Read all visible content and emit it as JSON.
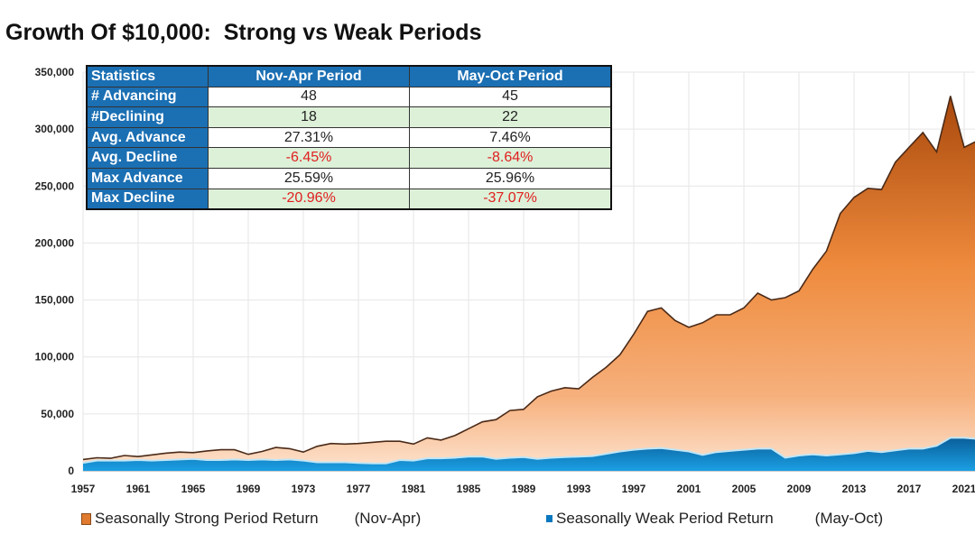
{
  "title": "Growth Of $10,000:  Strong vs Weak Periods",
  "stats_table": {
    "headers": [
      "Statistics",
      "Nov-Apr Period",
      "May-Oct Period"
    ],
    "rows": [
      {
        "label": "# Advancing",
        "nov_apr": "48",
        "may_oct": "45"
      },
      {
        "label": "#Declining",
        "nov_apr": "18",
        "may_oct": "22"
      },
      {
        "label": "Avg. Advance",
        "nov_apr": "27.31%",
        "may_oct": "7.46%"
      },
      {
        "label": "Avg. Decline",
        "nov_apr": "-6.45%",
        "may_oct": "-8.64%"
      },
      {
        "label": "Max Advance",
        "nov_apr": "25.59%",
        "may_oct": "25.96%"
      },
      {
        "label": "Max Decline",
        "nov_apr": "-20.96%",
        "may_oct": "-37.07%"
      }
    ],
    "colors": {
      "header": "#1b6fb3",
      "alt_row": "#ddf0d8",
      "negative": "#e02020"
    }
  },
  "legend": [
    {
      "label": "Seasonally Strong Period Return",
      "period": "(Nov-Apr)",
      "color": "#e07a2e"
    },
    {
      "label": "Seasonally Weak Period Return",
      "period": "(May-Oct)",
      "color": "#0a78c0"
    }
  ],
  "chart_data": {
    "type": "area",
    "title": "Growth Of $10,000:  Strong vs Weak Periods",
    "xlabel": "",
    "ylabel": "",
    "ylim": [
      0,
      350000
    ],
    "xlim": [
      1957,
      2022
    ],
    "y_ticks": [
      "0",
      "50,000",
      "100,000",
      "150,000",
      "200,000",
      "250,000",
      "300,000",
      "350,000"
    ],
    "x_ticks": [
      "1957",
      "1961",
      "1965",
      "1969",
      "1973",
      "1977",
      "1981",
      "1985",
      "1989",
      "1993",
      "1997",
      "2001",
      "2005",
      "2009",
      "2013",
      "2017",
      "2021"
    ],
    "grid": true,
    "legend_position": "bottom",
    "x": [
      1957,
      1958,
      1959,
      1960,
      1961,
      1962,
      1963,
      1964,
      1965,
      1966,
      1967,
      1968,
      1969,
      1970,
      1971,
      1972,
      1973,
      1974,
      1975,
      1976,
      1977,
      1978,
      1979,
      1980,
      1981,
      1982,
      1983,
      1984,
      1985,
      1986,
      1987,
      1988,
      1989,
      1990,
      1991,
      1992,
      1993,
      1994,
      1995,
      1996,
      1997,
      1998,
      1999,
      2000,
      2001,
      2002,
      2003,
      2004,
      2005,
      2006,
      2007,
      2008,
      2009,
      2010,
      2011,
      2012,
      2013,
      2014,
      2015,
      2016,
      2017,
      2018,
      2019,
      2020,
      2021,
      2022
    ],
    "series": [
      {
        "name": "Seasonally Strong Period Return (Nov-Apr)",
        "color": "#e07a2e",
        "values": [
          10000,
          11500,
          11000,
          13500,
          12500,
          14000,
          15500,
          16500,
          16000,
          17500,
          18500,
          18500,
          14500,
          17000,
          20500,
          19500,
          16500,
          21500,
          24000,
          23500,
          24000,
          25000,
          26000,
          26000,
          23500,
          29000,
          27000,
          31000,
          37000,
          43000,
          45000,
          53000,
          54000,
          65000,
          70000,
          73000,
          72000,
          82000,
          91000,
          102000,
          120000,
          140000,
          143000,
          132000,
          126000,
          130000,
          137000,
          137000,
          143000,
          156000,
          150000,
          152000,
          158000,
          177000,
          193000,
          226000,
          240000,
          248000,
          247000,
          271000,
          284000,
          297000,
          280000,
          329000,
          284000,
          290000
        ]
      },
      {
        "name": "Seasonally Weak Period Return (May-Oct)",
        "color": "#0a78c0",
        "values": [
          7000,
          9000,
          9000,
          9000,
          9500,
          9000,
          9500,
          10000,
          10500,
          9500,
          9500,
          10000,
          9500,
          10000,
          9500,
          10000,
          9000,
          7500,
          7500,
          7500,
          7000,
          6500,
          6500,
          9500,
          9000,
          11000,
          11000,
          11500,
          12500,
          12500,
          10500,
          11500,
          12000,
          10500,
          11500,
          12000,
          12500,
          13000,
          15000,
          17000,
          18500,
          19500,
          20000,
          18500,
          17000,
          14000,
          16500,
          17500,
          18500,
          19500,
          19500,
          11500,
          13500,
          14500,
          13500,
          14500,
          15500,
          17500,
          16500,
          18000,
          19500,
          19500,
          22000,
          29000,
          29000,
          28000
        ]
      }
    ]
  }
}
